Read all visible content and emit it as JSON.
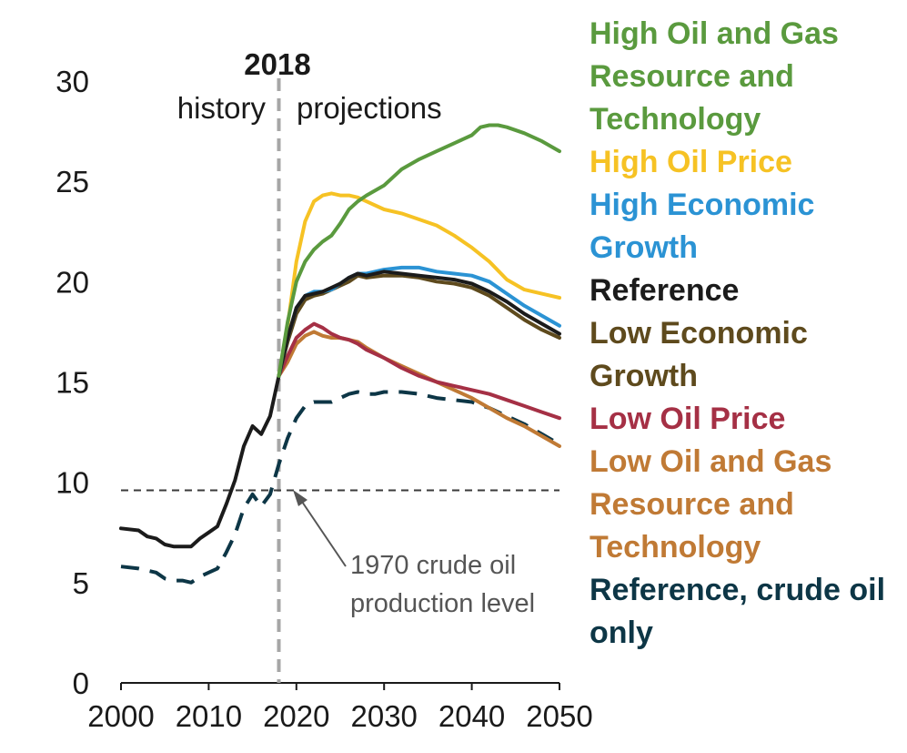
{
  "chart_data": {
    "type": "line",
    "divider_label": "2018",
    "history_label": "history",
    "projections_label": "projections",
    "annotation": [
      "1970 crude oil",
      "production level"
    ],
    "reference_line": 9.6,
    "xlim": [
      2000,
      2050
    ],
    "ylim": [
      0,
      30
    ],
    "xticks": [
      2000,
      2010,
      2020,
      2030,
      2040,
      2050
    ],
    "yticks": [
      0,
      5,
      10,
      15,
      20,
      25,
      30
    ],
    "divider_x": 2018,
    "series": [
      {
        "name": "Reference, crude oil only",
        "color": "#0d3646",
        "dash": true,
        "x": [
          2000,
          2002,
          2004,
          2005,
          2006,
          2007,
          2008,
          2009,
          2010,
          2011,
          2012,
          2013,
          2014,
          2015,
          2016,
          2017,
          2018,
          2019,
          2020,
          2021,
          2022,
          2023,
          2024,
          2025,
          2026,
          2027,
          2028,
          2029,
          2030,
          2032,
          2034,
          2036,
          2038,
          2040,
          2042,
          2044,
          2046,
          2048,
          2050
        ],
        "y": [
          5.8,
          5.7,
          5.5,
          5.2,
          5.1,
          5.1,
          5.0,
          5.3,
          5.5,
          5.7,
          6.5,
          7.4,
          8.7,
          9.4,
          8.8,
          9.4,
          10.9,
          12.2,
          13.2,
          13.8,
          14.0,
          14.0,
          14.0,
          14.2,
          14.4,
          14.5,
          14.4,
          14.4,
          14.5,
          14.5,
          14.4,
          14.2,
          14.1,
          14.0,
          13.7,
          13.3,
          12.9,
          12.4,
          11.9
        ]
      },
      {
        "name": "Low Oil and Gas Resource and Technology",
        "color": "#c07a35",
        "x": [
          2018,
          2019,
          2020,
          2021,
          2022,
          2023,
          2024,
          2025,
          2026,
          2027,
          2028,
          2030,
          2032,
          2034,
          2036,
          2038,
          2040,
          2042,
          2044,
          2046,
          2048,
          2050
        ],
        "y": [
          15.3,
          16.0,
          16.9,
          17.3,
          17.5,
          17.3,
          17.2,
          17.2,
          17.1,
          17.0,
          16.7,
          16.2,
          15.8,
          15.4,
          15.0,
          14.6,
          14.2,
          13.7,
          13.2,
          12.8,
          12.3,
          11.8
        ]
      },
      {
        "name": "Low Oil Price",
        "color": "#a53045",
        "x": [
          2018,
          2019,
          2020,
          2021,
          2022,
          2023,
          2024,
          2025,
          2026,
          2027,
          2028,
          2030,
          2032,
          2034,
          2036,
          2038,
          2040,
          2042,
          2044,
          2046,
          2048,
          2050
        ],
        "y": [
          15.3,
          16.3,
          17.2,
          17.6,
          17.9,
          17.7,
          17.4,
          17.2,
          17.1,
          16.9,
          16.6,
          16.2,
          15.7,
          15.3,
          15.0,
          14.8,
          14.6,
          14.4,
          14.1,
          13.8,
          13.5,
          13.2
        ]
      },
      {
        "name": "Low Economic Growth",
        "color": "#5e4a1d",
        "x": [
          2018,
          2019,
          2020,
          2021,
          2022,
          2023,
          2024,
          2025,
          2026,
          2027,
          2028,
          2030,
          2032,
          2034,
          2036,
          2038,
          2040,
          2042,
          2044,
          2046,
          2048,
          2050
        ],
        "y": [
          15.3,
          17.0,
          18.4,
          19.1,
          19.3,
          19.4,
          19.6,
          19.8,
          20.0,
          20.3,
          20.2,
          20.3,
          20.3,
          20.2,
          20.0,
          19.9,
          19.7,
          19.3,
          18.7,
          18.1,
          17.6,
          17.2
        ]
      },
      {
        "name": "High Oil Price",
        "color": "#f6c224",
        "x": [
          2018,
          2019,
          2020,
          2021,
          2022,
          2023,
          2024,
          2025,
          2026,
          2027,
          2028,
          2030,
          2032,
          2034,
          2036,
          2038,
          2040,
          2042,
          2044,
          2046,
          2048,
          2050
        ],
        "y": [
          15.3,
          17.8,
          21.0,
          23.0,
          24.0,
          24.3,
          24.4,
          24.3,
          24.3,
          24.2,
          24.0,
          23.6,
          23.4,
          23.1,
          22.8,
          22.3,
          21.7,
          21.0,
          20.1,
          19.6,
          19.4,
          19.2
        ]
      },
      {
        "name": "High Economic Growth",
        "color": "#2b93d4",
        "x": [
          2018,
          2019,
          2020,
          2021,
          2022,
          2023,
          2024,
          2025,
          2026,
          2027,
          2028,
          2030,
          2032,
          2034,
          2036,
          2038,
          2040,
          2042,
          2044,
          2046,
          2048,
          2050
        ],
        "y": [
          15.3,
          17.2,
          18.7,
          19.3,
          19.5,
          19.5,
          19.6,
          19.9,
          20.2,
          20.4,
          20.4,
          20.6,
          20.7,
          20.7,
          20.5,
          20.4,
          20.3,
          20.0,
          19.4,
          18.8,
          18.3,
          17.8
        ]
      },
      {
        "name": "Reference",
        "color": "#1b1b1b",
        "x": [
          2000,
          2002,
          2003,
          2004,
          2005,
          2006,
          2007,
          2008,
          2009,
          2010,
          2011,
          2012,
          2013,
          2014,
          2015,
          2016,
          2017,
          2018,
          2019,
          2020,
          2021,
          2022,
          2023,
          2024,
          2025,
          2026,
          2027,
          2028,
          2030,
          2032,
          2034,
          2036,
          2038,
          2040,
          2042,
          2044,
          2046,
          2048,
          2050
        ],
        "y": [
          7.7,
          7.6,
          7.3,
          7.2,
          6.9,
          6.8,
          6.8,
          6.8,
          7.2,
          7.5,
          7.8,
          8.9,
          10.1,
          11.8,
          12.8,
          12.4,
          13.3,
          15.3,
          17.2,
          18.7,
          19.3,
          19.4,
          19.5,
          19.7,
          19.9,
          20.2,
          20.4,
          20.3,
          20.5,
          20.4,
          20.3,
          20.2,
          20.1,
          19.9,
          19.5,
          19.0,
          18.4,
          17.9,
          17.4
        ]
      },
      {
        "name": "High Oil and Gas Resource and Technology",
        "color": "#5a9a3e",
        "x": [
          2018,
          2019,
          2020,
          2021,
          2022,
          2023,
          2024,
          2025,
          2026,
          2027,
          2028,
          2030,
          2031,
          2032,
          2034,
          2036,
          2038,
          2040,
          2041,
          2042,
          2043,
          2044,
          2046,
          2048,
          2050
        ],
        "y": [
          15.3,
          18.0,
          20.0,
          21.0,
          21.6,
          22.0,
          22.3,
          22.9,
          23.6,
          24.0,
          24.3,
          24.8,
          25.2,
          25.6,
          26.1,
          26.5,
          26.9,
          27.3,
          27.7,
          27.8,
          27.8,
          27.7,
          27.4,
          27.0,
          26.5
        ]
      }
    ]
  },
  "legend": [
    {
      "label": "High Oil and Gas Resource and Technology",
      "color": "#5a9a3e"
    },
    {
      "label": "High Oil Price",
      "color": "#f6c224"
    },
    {
      "label": "High Economic Growth",
      "color": "#2b93d4"
    },
    {
      "label": "Reference",
      "color": "#1b1b1b"
    },
    {
      "label": "Low Economic Growth",
      "color": "#5e4a1d"
    },
    {
      "label": "Low Oil Price",
      "color": "#a53045"
    },
    {
      "label": "Low Oil and Gas Resource and Technology",
      "color": "#c07a35"
    },
    {
      "label": "Reference, crude oil only",
      "color": "#0d3646"
    }
  ]
}
